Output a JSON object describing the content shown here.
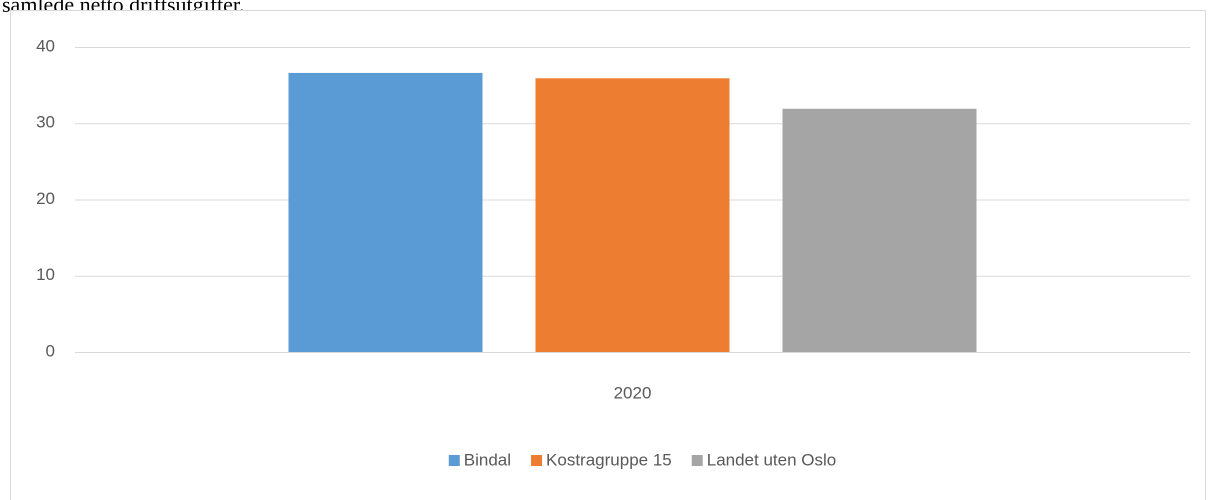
{
  "document_text": "samlede netto driftsutgifter.",
  "chart_data": {
    "type": "bar",
    "categories": [
      "2020"
    ],
    "series": [
      {
        "name": "Bindal",
        "color": "#5b9bd5",
        "values": [
          36.6
        ]
      },
      {
        "name": "Kostragruppe 15",
        "color": "#ed7d31",
        "values": [
          35.9
        ]
      },
      {
        "name": "Landet uten Oslo",
        "color": "#a5a5a5",
        "values": [
          31.9
        ]
      }
    ],
    "ylim": [
      0,
      40
    ],
    "yticks": [
      0,
      10,
      20,
      30,
      40
    ],
    "grid": true,
    "legend": "bottom"
  }
}
